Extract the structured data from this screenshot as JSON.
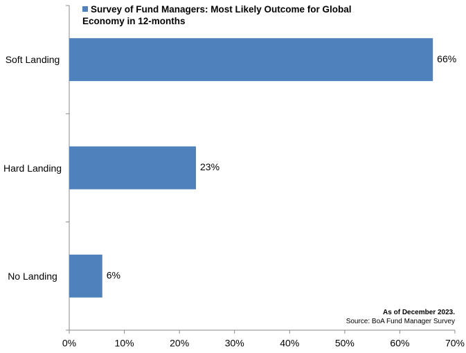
{
  "chart_data": {
    "type": "bar",
    "orientation": "horizontal",
    "categories": [
      "Soft Landing",
      "Hard Landing",
      "No Landing"
    ],
    "series": [
      {
        "name": "Survey of Fund Managers: Most Likely Outcome for Global Economy in 12-months",
        "color": "#4f81bd",
        "values": [
          66,
          23,
          6
        ],
        "value_labels": [
          "66%",
          "23%",
          "6%"
        ]
      }
    ],
    "xlim": [
      0,
      70
    ],
    "xticks": [
      {
        "value": 0,
        "label": "0%"
      },
      {
        "value": 10,
        "label": "10%"
      },
      {
        "value": 20,
        "label": "20%"
      },
      {
        "value": 30,
        "label": "30%"
      },
      {
        "value": 40,
        "label": "40%"
      },
      {
        "value": 50,
        "label": "50%"
      },
      {
        "value": 60,
        "label": "60%"
      },
      {
        "value": 70,
        "label": "70%"
      }
    ],
    "annotations": [
      "As of December 2023.",
      "Source: BoA Fund Manager Survey"
    ]
  }
}
